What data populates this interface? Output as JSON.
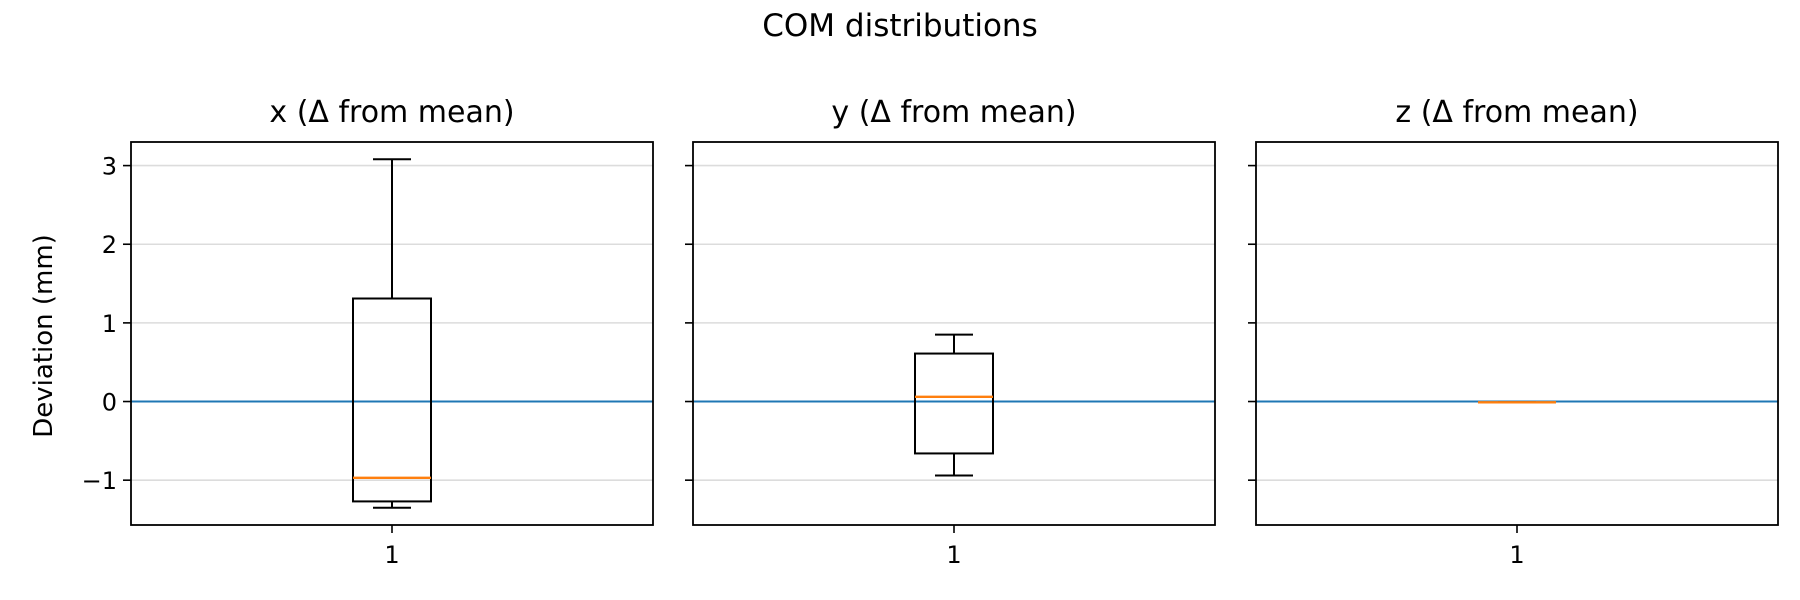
{
  "figure": {
    "title": "COM distributions"
  },
  "chart_data": {
    "type": "box",
    "ylabel": "Deviation (mm)",
    "ylim": [
      -1.57,
      3.3
    ],
    "yticks": [
      -1,
      0,
      1,
      2,
      3
    ],
    "ytick_labels": [
      "−1",
      "0",
      "1",
      "2",
      "3"
    ],
    "grid": "horizontal",
    "shared_y": true,
    "reference_line": {
      "y": 0,
      "color": "#1f77b4"
    },
    "box_color": "#000000",
    "median_color": "#ff7f0e",
    "panels": [
      {
        "title": "x (Δ from mean)",
        "xtick_labels": [
          "1"
        ],
        "boxes": [
          {
            "position": 1,
            "whisker_low": -1.35,
            "q1": -1.27,
            "median": -0.97,
            "q3": 1.31,
            "whisker_high": 3.08
          }
        ]
      },
      {
        "title": "y (Δ from mean)",
        "xtick_labels": [
          "1"
        ],
        "boxes": [
          {
            "position": 1,
            "whisker_low": -0.94,
            "q1": -0.66,
            "median": 0.06,
            "q3": 0.61,
            "whisker_high": 0.85
          }
        ]
      },
      {
        "title": "z (Δ from mean)",
        "xtick_labels": [
          "1"
        ],
        "boxes": [
          {
            "position": 1,
            "whisker_low": -0.01,
            "q1": -0.01,
            "median": -0.01,
            "q3": -0.01,
            "whisker_high": -0.01
          }
        ]
      }
    ]
  }
}
